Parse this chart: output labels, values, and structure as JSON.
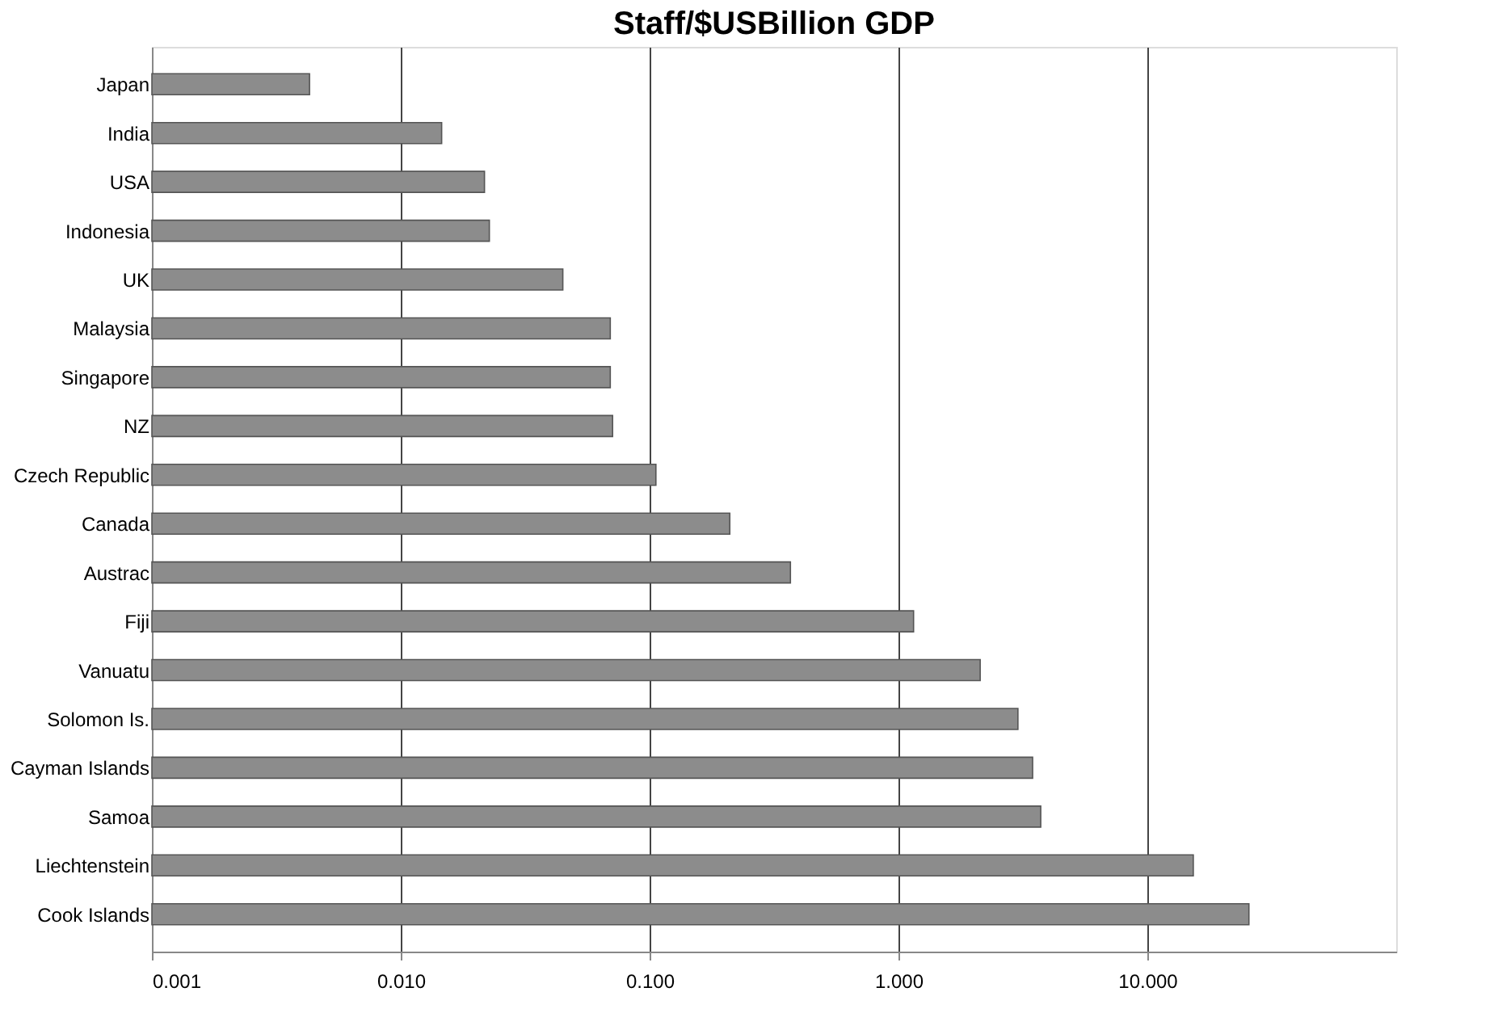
{
  "chart_data": {
    "type": "bar",
    "orientation": "horizontal",
    "title": "Staff/$USBillion GDP",
    "categories": [
      "Japan",
      "India",
      "USA",
      "Indonesia",
      "UK",
      "Malaysia",
      "Singapore",
      "NZ",
      "Czech Republic",
      "Canada",
      "Austrac",
      "Fiji",
      "Vanuatu",
      "Solomon Is.",
      "Cayman Islands",
      "Samoa",
      "Liechtenstein",
      "Cook Islands"
    ],
    "values": [
      0.0043,
      0.0146,
      0.0217,
      0.0227,
      0.0448,
      0.0695,
      0.0695,
      0.071,
      0.106,
      0.21,
      0.368,
      1.15,
      2.13,
      3.02,
      3.46,
      3.73,
      15.3,
      25.6
    ],
    "color": "#8c8c8c",
    "log": "x",
    "xlim": [
      0.001,
      100
    ],
    "xticks": [
      {
        "value": 0.001,
        "label": "0.001"
      },
      {
        "value": 0.01,
        "label": "0.010"
      },
      {
        "value": 0.1,
        "label": "0.100"
      },
      {
        "value": 1,
        "label": "1.000"
      },
      {
        "value": 10,
        "label": "10.000"
      }
    ],
    "grid": "x"
  }
}
